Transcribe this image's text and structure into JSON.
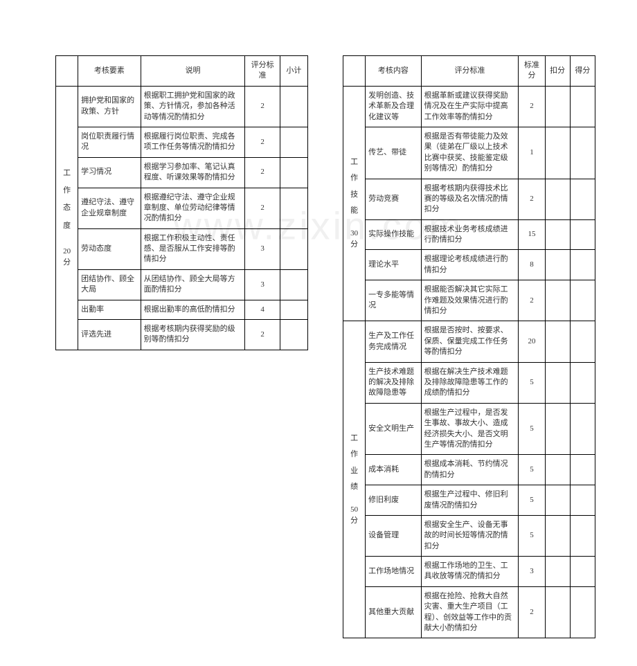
{
  "watermark": "www.zixin.com",
  "table1": {
    "headers": [
      "",
      "考核要素",
      "说明",
      "评分标准",
      "小计"
    ],
    "category": {
      "label": "工 作 态 度",
      "points": "20 分"
    },
    "rows": [
      {
        "item": "拥护党和国家的政策、方针",
        "desc": "根据职工拥护党和国家的政策、方针情况，参加各种活动等情况酌情扣分",
        "score": "2",
        "sub": ""
      },
      {
        "item": "岗位职责履行情况",
        "desc": "根据履行岗位职责、完成各项工作任务等情况酌情扣分",
        "score": "2",
        "sub": ""
      },
      {
        "item": "学习情况",
        "desc": "根据学习参加率、笔记认真程度、听课效果等酌情扣分",
        "score": "2",
        "sub": ""
      },
      {
        "item": "遵纪守法、遵守企业规章制度",
        "desc": "根据遵纪守法、遵守企业规章制度、单位劳动纪律等情况酌情扣分",
        "score": "2",
        "sub": ""
      },
      {
        "item": "劳动态度",
        "desc": "根据工作积极主动性、责任感、是否服从工作安排等酌情扣分",
        "score": "3",
        "sub": ""
      },
      {
        "item": "团结协作、顾全大局",
        "desc": "从团结协作、顾全大局等方面酌情扣分",
        "score": "3",
        "sub": ""
      },
      {
        "item": "出勤率",
        "desc": "根据出勤率的高低酌情扣分",
        "score": "4",
        "sub": ""
      },
      {
        "item": "评选先进",
        "desc": "根据考核期内获得奖励的级别等酌情扣分",
        "score": "2",
        "sub": ""
      }
    ]
  },
  "table2": {
    "headers": [
      "",
      "考核内容",
      "评分标准",
      "标准分",
      "扣分",
      "得分"
    ],
    "cat1": {
      "label": "工 作 技 能",
      "points": "30 分"
    },
    "cat2": {
      "label": "工 作 业 绩",
      "points": "50 分"
    },
    "rows1": [
      {
        "item": "发明创造、技术革新及合理化建议等",
        "desc": "根据革新或建议获得奖励情况及在生产实际中提高工作效率等酌情扣分",
        "std": "2"
      },
      {
        "item": "传艺、带徒",
        "desc": "根据是否有带徒能力及效果（徒弟在厂级以上技术比赛中获奖、技能鉴定级别等情况）酌情扣分",
        "std": "1"
      },
      {
        "item": "劳动竞赛",
        "desc": "根据考核期内获得技术比赛的等级及名次情况酌情扣分",
        "std": "2"
      },
      {
        "item": "实际操作技能",
        "desc": "根据技术业务考核成绩进行酌情扣分",
        "std": "15"
      },
      {
        "item": "理论水平",
        "desc": "根据理论考核成绩进行酌情扣分",
        "std": "8"
      },
      {
        "item": "一专多能等情况",
        "desc": "根据能否解决其它实际工作难题及效果情况进行酌情扣分",
        "std": "2"
      }
    ],
    "rows2": [
      {
        "item": "生产及工作任务完成情况",
        "desc": "根据是否按时、按要求、保质、保量完成工作任务等酌情扣分",
        "std": "20"
      },
      {
        "item": "生产技术难题的解决及排除故障隐患等",
        "desc": "根据在解决生产技术难题及排除故障隐患等工作的成绩酌情扣分",
        "std": "5"
      },
      {
        "item": "安全文明生产",
        "desc": "根据生产过程中，是否发生事故、事故大小、造成经济损失大小、是否文明生产等情况酌情扣分",
        "std": "5"
      },
      {
        "item": "成本消耗",
        "desc": "根据成本消耗、节约情况酌情扣分",
        "std": "5"
      },
      {
        "item": "修旧利废",
        "desc": "根据生产过程中、修旧利废情况酌情扣分",
        "std": "5"
      },
      {
        "item": "设备管理",
        "desc": "根据安全生产、设备无事故的时间长短等情况酌情扣分",
        "std": "5"
      },
      {
        "item": "工作场地情况",
        "desc": "根据工作场地的卫生、工具收放等情况酌情扣分",
        "std": "3"
      },
      {
        "item": "其他重大贡献",
        "desc": "根据在抢险、抢救大自然灾害、重大生产项目（工程）、创效益等工作中的贡献大小酌情扣分",
        "std": "2"
      }
    ]
  }
}
